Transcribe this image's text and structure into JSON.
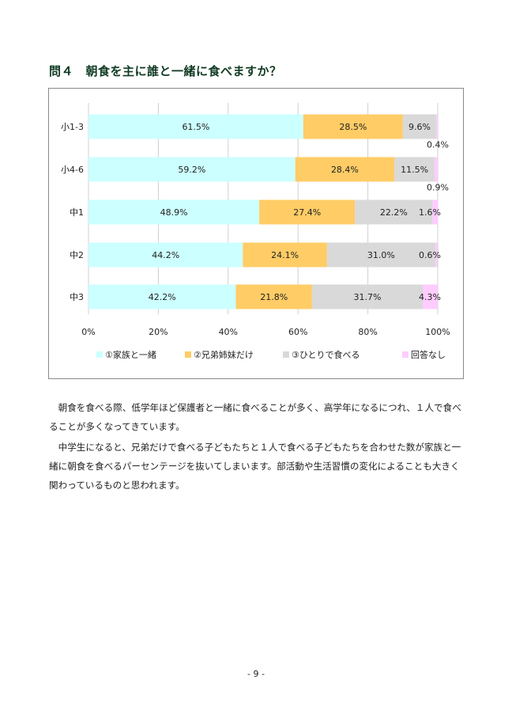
{
  "heading": "問４　朝食を主に誰と一緒に食べますか？",
  "colors": {
    "family": "#ccffff",
    "siblings": "#ffcc66",
    "alone": "#d9d9d9",
    "no_answer": "#ffccff",
    "frame": "#8a8a8a",
    "gridline": "#d0d0d0",
    "heading": "#0f3a22"
  },
  "chart_data": {
    "type": "bar",
    "orientation": "horizontal",
    "stacked": true,
    "percent_stacked": true,
    "categories": [
      "小1-3",
      "小4-6",
      "中1",
      "中2",
      "中3"
    ],
    "series": [
      {
        "name": "①家族と一緒",
        "values": [
          61.5,
          59.2,
          48.9,
          44.2,
          42.2
        ],
        "labels": [
          "61.5%",
          "59.2%",
          "48.9%",
          "44.2%",
          "42.2%"
        ]
      },
      {
        "name": "②兄弟姉妹だけ",
        "values": [
          28.5,
          28.4,
          27.4,
          24.1,
          21.8
        ],
        "labels": [
          "28.5%",
          "28.4%",
          "27.4%",
          "24.1%",
          "21.8%"
        ]
      },
      {
        "name": "③ひとりで食べる",
        "values": [
          9.6,
          11.5,
          22.2,
          31.0,
          31.7
        ],
        "labels": [
          "9.6%",
          "11.5%",
          "22.2%",
          "31.0%",
          "31.7%"
        ]
      },
      {
        "name": "回答なし",
        "values": [
          0.4,
          0.9,
          1.6,
          0.6,
          4.3
        ],
        "labels": [
          "0.4%",
          "0.9%",
          "1.6%",
          "0.6%",
          "4.3%"
        ]
      }
    ],
    "x_ticks": [
      "0%",
      "20%",
      "40%",
      "60%",
      "80%",
      "100%"
    ],
    "xlim": [
      0,
      100
    ],
    "grid": true,
    "legend_position": "bottom"
  },
  "paragraphs": [
    "朝食を食べる際、低学年ほど保護者と一緒に食べることが多く、高学年になるにつれ、１人で食べることが多くなってきています。",
    "中学生になると、兄弟だけで食べる子どもたちと１人で食べる子どもたちを合わせた数が家族と一緒に朝食を食べるパーセンテージを抜いてしまいます。部活動や生活習慣の変化によることも大きく関わっているものと思われます。"
  ],
  "page_number": "- 9 -"
}
